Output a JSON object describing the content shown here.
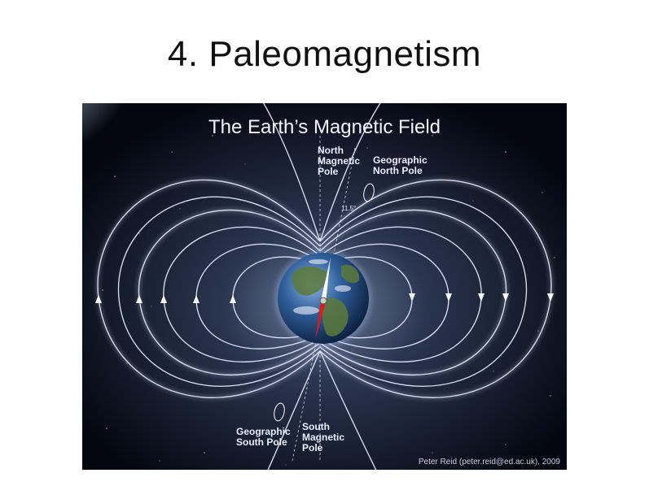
{
  "slide": {
    "title": "4. Paleomagnetism"
  },
  "figure": {
    "title": "The Earth’s Magnetic Field",
    "labels": {
      "north_magnetic_pole": "North\nMagnetic\nPole",
      "geographic_north_pole": "Geographic\nNorth Pole",
      "geographic_south_pole": "Geographic\nSouth Pole",
      "south_magnetic_pole": "South\nMagnetic\nPole",
      "tilt_angle": "11.5°"
    },
    "credit": "Peter Reid (peter.reid@ed.ac.uk), 2009"
  },
  "colors": {
    "background": "#050a16",
    "field_lines": "#dfe6ff",
    "compass_north": "#ffffff",
    "compass_south": "#e01818"
  }
}
